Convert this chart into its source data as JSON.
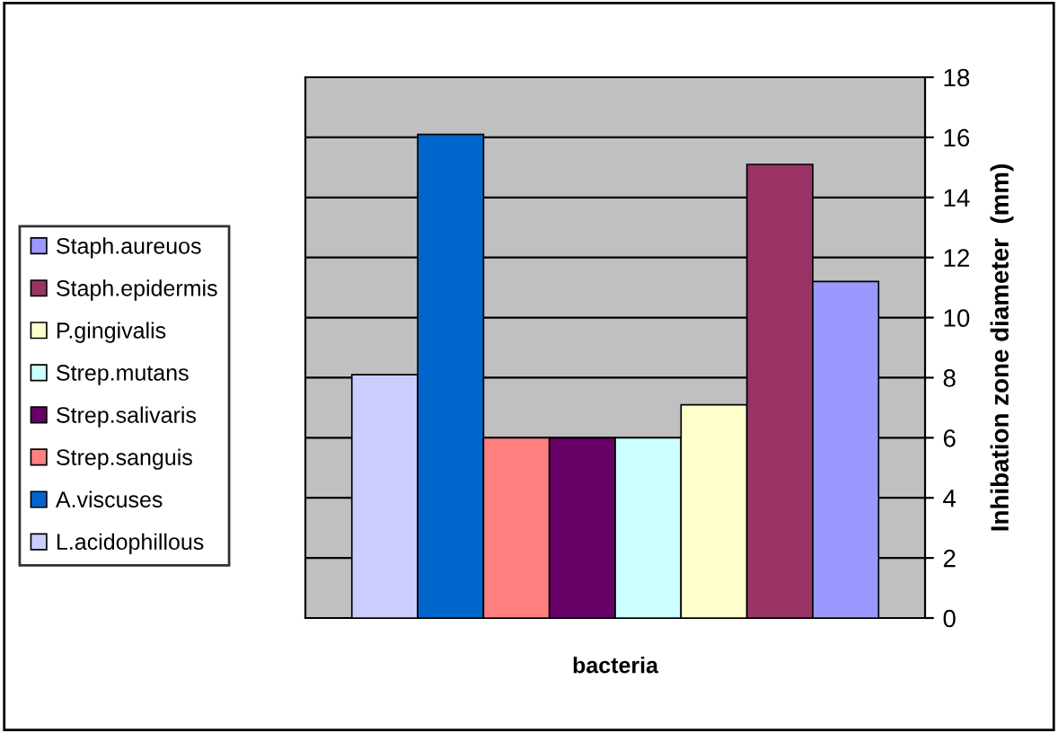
{
  "chart_data": {
    "type": "bar",
    "xlabel": "bacteria",
    "ylabel": "Inhibation zone diameter  (mm)",
    "categories": [
      null
    ],
    "series": [
      {
        "name": "L.acidophillous",
        "color": "#ccccff",
        "values": [
          8.1
        ]
      },
      {
        "name": "A.viscuses",
        "color": "#0066cc",
        "values": [
          16.1
        ]
      },
      {
        "name": "Strep.sanguis",
        "color": "#ff8080",
        "values": [
          6
        ]
      },
      {
        "name": "Strep.salivaris",
        "color": "#660066",
        "values": [
          6
        ]
      },
      {
        "name": "Strep.mutans",
        "color": "#ccffff",
        "values": [
          6
        ]
      },
      {
        "name": "P.gingivalis",
        "color": "#ffffcc",
        "values": [
          7.1
        ]
      },
      {
        "name": "Staph.epidermis",
        "color": "#993366",
        "values": [
          15.1
        ]
      },
      {
        "name": "Staph.aureuos",
        "color": "#9999ff",
        "values": [
          11.2
        ]
      }
    ],
    "ylim": [
      0,
      18
    ],
    "yticks": [
      0,
      2,
      4,
      6,
      8,
      10,
      12,
      14,
      16,
      18
    ],
    "grid": "y",
    "legend": "left"
  }
}
